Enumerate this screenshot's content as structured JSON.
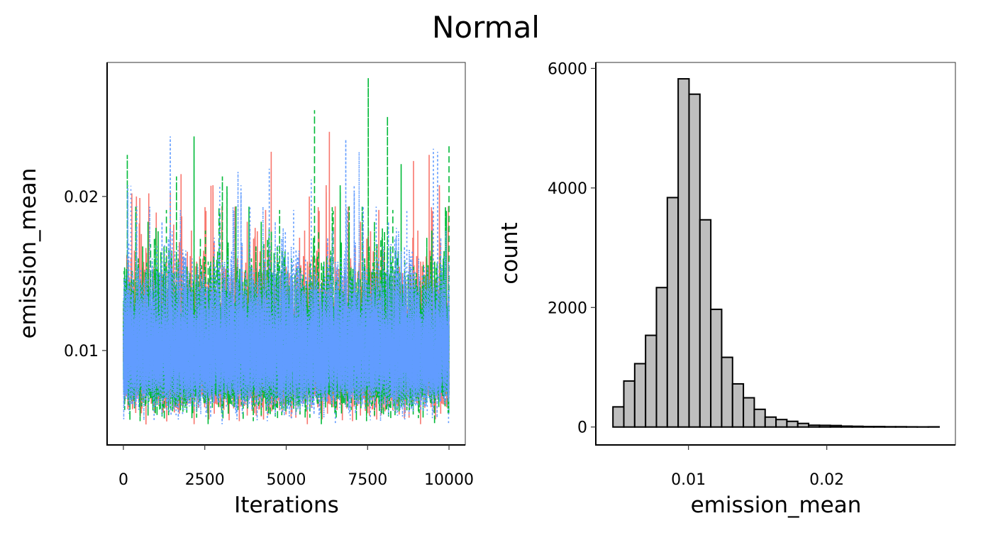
{
  "title": "Normal",
  "chart_data": [
    {
      "type": "line",
      "xlabel": "Iterations",
      "ylabel": "emission_mean",
      "xlim": [
        -500,
        10500
      ],
      "ylim": [
        0.00387,
        0.0287
      ],
      "xticks": [
        0,
        2500,
        5000,
        7500,
        10000
      ],
      "xtick_labels": [
        "0",
        "2500",
        "5000",
        "7500",
        "10000"
      ],
      "yticks": [
        0.01,
        0.02
      ],
      "ytick_labels": [
        "0.01",
        "0.02"
      ],
      "grid": false,
      "legend": "none",
      "n_iterations": 10000,
      "series": [
        {
          "chain": 1,
          "color": "#F8766D",
          "linetype": "solid",
          "typical": 0.0098,
          "min": 0.0052,
          "peaks": [
            [
              400,
              0.02
            ],
            [
              780,
              0.0202
            ],
            [
              2690,
              0.0207
            ],
            [
              4540,
              0.0229
            ],
            [
              5710,
              0.02
            ],
            [
              6326,
              0.0242
            ],
            [
              8910,
              0.0223
            ],
            [
              9390,
              0.0227
            ]
          ]
        },
        {
          "chain": 2,
          "color": "#00BA38",
          "linetype": "dashed",
          "typical": 0.0098,
          "min": 0.0052,
          "peaks": [
            [
              120,
              0.0227
            ],
            [
              1630,
              0.0213
            ],
            [
              2170,
              0.0239
            ],
            [
              3040,
              0.0213
            ],
            [
              5870,
              0.0256
            ],
            [
              7520,
              0.0277
            ],
            [
              8110,
              0.0252
            ],
            [
              8530,
              0.0221
            ],
            [
              10000,
              0.0234
            ]
          ]
        },
        {
          "chain": 3,
          "color": "#619CFF",
          "linetype": "dotted",
          "typical": 0.0098,
          "min": 0.0052,
          "peaks": [
            [
              230,
              0.0207
            ],
            [
              1440,
              0.0239
            ],
            [
              2960,
              0.0207
            ],
            [
              3520,
              0.0216
            ],
            [
              4480,
              0.0218
            ],
            [
              5770,
              0.0211
            ],
            [
              6830,
              0.0237
            ],
            [
              7240,
              0.0229
            ],
            [
              9520,
              0.0231
            ],
            [
              9650,
              0.0229
            ]
          ]
        }
      ]
    },
    {
      "type": "bar",
      "subtype": "histogram",
      "xlabel": "emission_mean",
      "ylabel": "count",
      "bin_start": 0.00454,
      "bin_width": 0.000786,
      "counts": [
        337,
        770,
        1060,
        1534,
        2333,
        3839,
        5826,
        5569,
        3467,
        1969,
        1166,
        722,
        489,
        296,
        166,
        125,
        95,
        60,
        30,
        28,
        25,
        15,
        12,
        8,
        8,
        5,
        5,
        3,
        2,
        3
      ],
      "fill": "#BEBEBE",
      "outline": "#000000",
      "xlim": [
        0.0033,
        0.0293
      ],
      "ylim": [
        -300,
        6100
      ],
      "xticks": [
        0.01,
        0.02
      ],
      "xtick_labels": [
        "0.01",
        "0.02"
      ],
      "yticks": [
        0,
        2000,
        4000,
        6000
      ],
      "ytick_labels": [
        "0",
        "2000",
        "4000",
        "6000"
      ],
      "grid": false
    }
  ]
}
